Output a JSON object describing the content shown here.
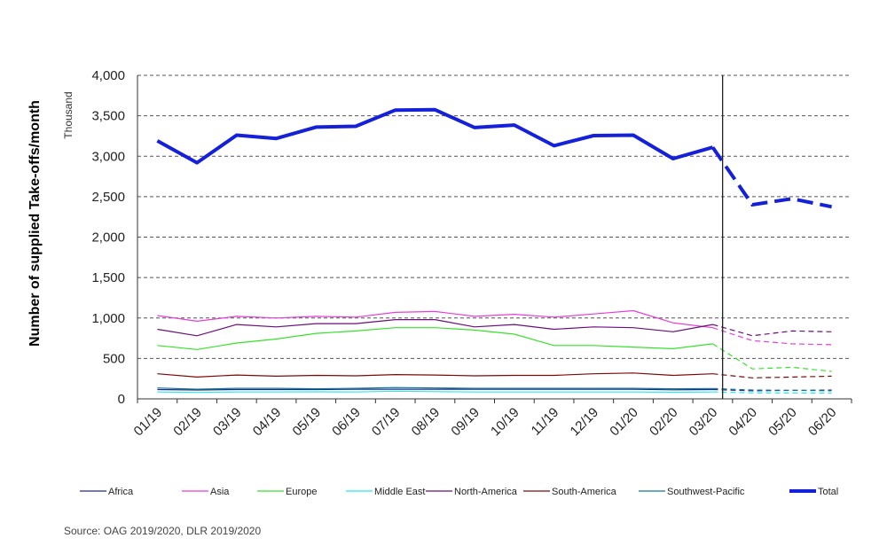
{
  "chart_data": {
    "type": "line",
    "ylabel": "Number of supplied Take-offs/month",
    "unit": "Thousand",
    "ylim": [
      0,
      4000
    ],
    "yticks": [
      0,
      500,
      1000,
      1500,
      2000,
      2500,
      3000,
      3500,
      4000
    ],
    "ytick_labels": [
      "0",
      "500",
      "1,000",
      "1,500",
      "2,000",
      "2,500",
      "3,000",
      "3,500",
      "4,000"
    ],
    "grid": true,
    "legend_position": "bottom",
    "categories": [
      "01/19",
      "02/19",
      "03/19",
      "04/19",
      "05/19",
      "06/19",
      "07/19",
      "08/19",
      "09/19",
      "10/19",
      "11/19",
      "12/19",
      "01/20",
      "02/20",
      "03/20",
      "04/20",
      "05/20",
      "06/20"
    ],
    "forecast_start": "03/20",
    "series": [
      {
        "name": "Africa",
        "color": "#1f2a8f",
        "width": 1.2,
        "values": [
          115,
          110,
          115,
          115,
          115,
          118,
          120,
          120,
          118,
          118,
          118,
          118,
          118,
          112,
          115,
          100,
          105,
          108
        ]
      },
      {
        "name": "Asia",
        "color": "#e43fd6",
        "width": 1.2,
        "values": [
          1030,
          960,
          1020,
          1000,
          1020,
          1010,
          1070,
          1080,
          1020,
          1045,
          1010,
          1050,
          1090,
          940,
          880,
          720,
          680,
          670
        ]
      },
      {
        "name": "Europe",
        "color": "#36e32a",
        "width": 1.2,
        "values": [
          660,
          610,
          690,
          740,
          810,
          840,
          880,
          880,
          850,
          800,
          660,
          660,
          640,
          620,
          680,
          370,
          390,
          340
        ]
      },
      {
        "name": "Middle East",
        "color": "#29e8f0",
        "width": 1.2,
        "values": [
          85,
          80,
          85,
          85,
          88,
          85,
          95,
          90,
          85,
          85,
          85,
          85,
          85,
          82,
          85,
          75,
          72,
          70
        ]
      },
      {
        "name": "North-America",
        "color": "#6b0f7a",
        "width": 1.2,
        "values": [
          860,
          780,
          920,
          890,
          930,
          930,
          980,
          980,
          890,
          920,
          860,
          890,
          880,
          830,
          920,
          780,
          840,
          830
        ]
      },
      {
        "name": "South-America",
        "color": "#7a0a0a",
        "width": 1.2,
        "values": [
          310,
          270,
          295,
          280,
          290,
          285,
          300,
          295,
          285,
          290,
          290,
          310,
          320,
          290,
          310,
          260,
          270,
          280
        ]
      },
      {
        "name": "Southwest-Pacific",
        "color": "#0f7a8a",
        "width": 1.2,
        "values": [
          135,
          120,
          130,
          130,
          125,
          130,
          140,
          135,
          130,
          130,
          130,
          130,
          130,
          125,
          128,
          110,
          105,
          100
        ]
      },
      {
        "name": "Total",
        "color": "#1521d8",
        "width": 4,
        "values": [
          3190,
          2920,
          3260,
          3220,
          3360,
          3370,
          3570,
          3575,
          3355,
          3385,
          3130,
          3255,
          3260,
          2970,
          3110,
          2400,
          2475,
          2375
        ]
      }
    ]
  },
  "source": "Source: OAG 2019/2020, DLR 2019/2020"
}
